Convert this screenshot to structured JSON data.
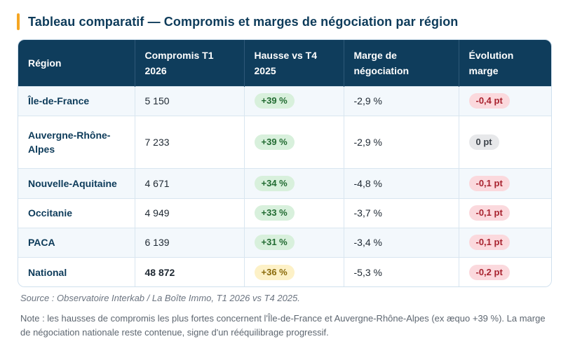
{
  "title": "Tableau comparatif — Compromis et marges de négociation par région",
  "colors": {
    "accent": "#f5a623",
    "header_bg": "#0f3d5c"
  },
  "table": {
    "headers": [
      "Région",
      "Compromis T1 2026",
      "Hausse vs T4 2025",
      "Marge de négociation",
      "Évolution marge"
    ],
    "rows": [
      {
        "region": "Île-de-France",
        "compromis": "5 150",
        "hausse": "+39 %",
        "hausse_tone": "green",
        "marge": "-2,9 %",
        "evolution": "-0,4 pt",
        "evolution_tone": "red"
      },
      {
        "region": "Auvergne-Rhône-Alpes",
        "compromis": "7 233",
        "hausse": "+39 %",
        "hausse_tone": "green",
        "marge": "-2,9 %",
        "evolution": "0 pt",
        "evolution_tone": "grey"
      },
      {
        "region": "Nouvelle-Aquitaine",
        "compromis": "4 671",
        "hausse": "+34 %",
        "hausse_tone": "green",
        "marge": "-4,8 %",
        "evolution": "-0,1 pt",
        "evolution_tone": "red"
      },
      {
        "region": "Occitanie",
        "compromis": "4 949",
        "hausse": "+33 %",
        "hausse_tone": "green",
        "marge": "-3,7 %",
        "evolution": "-0,1 pt",
        "evolution_tone": "red"
      },
      {
        "region": "PACA",
        "compromis": "6 139",
        "hausse": "+31 %",
        "hausse_tone": "green",
        "marge": "-3,4 %",
        "evolution": "-0,1 pt",
        "evolution_tone": "red"
      },
      {
        "region": "National",
        "compromis": "48 872",
        "hausse": "+36 %",
        "hausse_tone": "yellow",
        "marge": "-5,3 %",
        "evolution": "-0,2 pt",
        "evolution_tone": "red"
      }
    ]
  },
  "source": "Source : Observatoire Interkab / La Boîte Immo, T1 2026 vs T4 2025.",
  "note": "Note : les hausses de compromis les plus fortes concernent l'Île-de-France et Auvergne-Rhône-Alpes (ex æquo +39 %). La marge de négociation nationale reste contenue, signe d'un rééquilibrage progressif."
}
